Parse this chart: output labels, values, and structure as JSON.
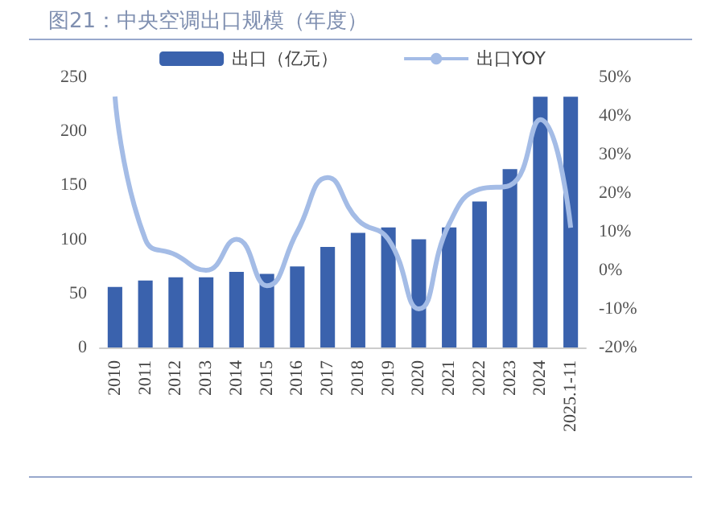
{
  "chart_data": {
    "type": "bar",
    "title": "图21：中央空调出口规模（年度）",
    "categories": [
      "2010",
      "2011",
      "2012",
      "2013",
      "2014",
      "2015",
      "2016",
      "2017",
      "2018",
      "2019",
      "2020",
      "2021",
      "2022",
      "2023",
      "2024",
      "2025.1-11"
    ],
    "series": [
      {
        "name": "出口（亿元）",
        "color": "#3a62ad",
        "values": [
          56,
          62,
          65,
          65,
          70,
          68,
          75,
          93,
          106,
          111,
          100,
          111,
          135,
          165,
          232,
          232
        ]
      },
      {
        "name": "出口YOY",
        "type": "line",
        "axis": "y2",
        "color": "#a4bce6",
        "values": [
          45,
          8,
          4,
          0,
          8,
          -4,
          10,
          24,
          13,
          8,
          -10,
          12,
          21,
          22,
          39,
          11
        ]
      }
    ],
    "ylim": [
      0,
      250
    ],
    "yticks": [
      0,
      50,
      100,
      150,
      200,
      250
    ],
    "y2lim": [
      -20,
      50
    ],
    "y2ticks": [
      {
        "value": -20,
        "label": "-20%"
      },
      {
        "value": -10,
        "label": "-10%"
      },
      {
        "value": 0,
        "label": "0%"
      },
      {
        "value": 10,
        "label": "10%"
      },
      {
        "value": 20,
        "label": "20%"
      },
      {
        "value": 30,
        "label": "30%"
      },
      {
        "value": 40,
        "label": "40%"
      },
      {
        "value": 50,
        "label": "50%"
      }
    ],
    "grid": false,
    "legend": "top",
    "marker": "none"
  }
}
